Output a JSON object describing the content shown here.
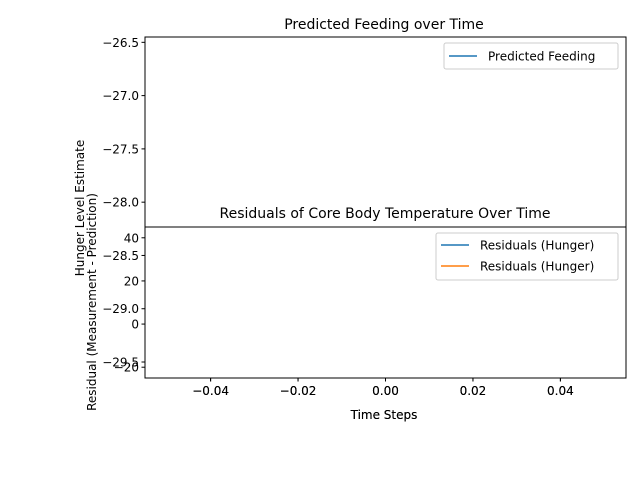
{
  "chart_data": [
    {
      "type": "line",
      "title": "Predicted Feeding over Time",
      "xlabel": "Time Steps",
      "ylabel": "Hunger Level Estimate",
      "xlim": [
        -0.055,
        0.055
      ],
      "ylim": [
        -29.65,
        -26.45
      ],
      "xticks": [
        "−0.04",
        "−0.02",
        "0.00",
        "0.02",
        "0.04"
      ],
      "yticks": [
        "−26.5",
        "−27.0",
        "−27.5",
        "−28.0",
        "−28.5",
        "−29.0",
        "−29.5"
      ],
      "legend_position": "top-right",
      "grid": false,
      "series": [
        {
          "name": "Predicted Feeding",
          "color": "#1f77b4",
          "x": [],
          "y": []
        }
      ]
    },
    {
      "type": "line",
      "title": "Residuals of Core Body Temperature Over Time",
      "xlabel": "Time Steps",
      "ylabel": "Residual (Measurement - Prediction)",
      "xlim": [
        -0.055,
        0.055
      ],
      "ylim": [
        -25,
        45
      ],
      "xticks": [
        "−0.04",
        "−0.02",
        "0.00",
        "0.02",
        "0.04"
      ],
      "yticks": [
        "40",
        "20",
        "0",
        "−20"
      ],
      "legend_position": "top-right",
      "grid": false,
      "series": [
        {
          "name": "Residuals (Hunger)",
          "color": "#1f77b4",
          "x": [],
          "y": []
        },
        {
          "name": "Residuals (Hunger)",
          "color": "#ff7f0e",
          "x": [],
          "y": []
        }
      ]
    }
  ]
}
